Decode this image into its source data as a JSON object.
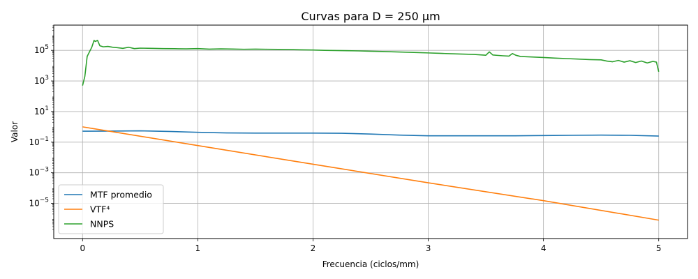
{
  "chart_data": {
    "type": "line",
    "title": "Curvas para D = 250 µm",
    "xlabel": "Frecuencia (ciclos/mm)",
    "ylabel": "Valor",
    "yscale": "log",
    "xlim": [
      -0.25,
      5.25
    ],
    "ylim_log10": [
      -7.3,
      6.65
    ],
    "grid": true,
    "legend_position": "lower-left",
    "x_ticks": [
      {
        "value": 0,
        "label": "0"
      },
      {
        "value": 1,
        "label": "1"
      },
      {
        "value": 2,
        "label": "2"
      },
      {
        "value": 3,
        "label": "3"
      },
      {
        "value": 4,
        "label": "4"
      },
      {
        "value": 5,
        "label": "5"
      }
    ],
    "y_ticks": [
      {
        "value": -5,
        "base": "10",
        "exp": "−5"
      },
      {
        "value": -3,
        "base": "10",
        "exp": "−3"
      },
      {
        "value": -1,
        "base": "10",
        "exp": "−1"
      },
      {
        "value": 1,
        "base": "10",
        "exp": "1"
      },
      {
        "value": 3,
        "base": "10",
        "exp": "3"
      },
      {
        "value": 5,
        "base": "10",
        "exp": "5"
      }
    ],
    "series": [
      {
        "name": "MTF promedio",
        "color": "#1f77b4",
        "x": [
          0.0,
          0.25,
          0.5,
          0.75,
          1.0,
          1.25,
          1.5,
          1.75,
          2.0,
          2.25,
          2.5,
          2.75,
          3.0,
          3.25,
          3.5,
          3.75,
          4.0,
          4.25,
          4.5,
          4.75,
          5.0
        ],
        "y": [
          0.52,
          0.53,
          0.55,
          0.5,
          0.44,
          0.4,
          0.39,
          0.39,
          0.39,
          0.38,
          0.34,
          0.29,
          0.26,
          0.26,
          0.26,
          0.26,
          0.27,
          0.28,
          0.29,
          0.28,
          0.25
        ]
      },
      {
        "name": "VTF⁴",
        "color": "#ff7f0e",
        "x": [
          0.0,
          1.0,
          2.0,
          3.0,
          4.0,
          5.0
        ],
        "y": [
          1.0,
          0.06,
          0.0036,
          0.00022,
          1.5e-05,
          8e-07
        ]
      },
      {
        "name": "NNPS",
        "color": "#2ca02c",
        "x": [
          0.0,
          0.02,
          0.04,
          0.06,
          0.08,
          0.1,
          0.11,
          0.13,
          0.15,
          0.18,
          0.22,
          0.26,
          0.3,
          0.35,
          0.4,
          0.45,
          0.5,
          0.6,
          0.7,
          0.8,
          0.9,
          1.0,
          1.1,
          1.2,
          1.3,
          1.4,
          1.5,
          1.6,
          1.7,
          1.8,
          1.9,
          2.0,
          2.1,
          2.2,
          2.3,
          2.4,
          2.5,
          2.6,
          2.7,
          2.8,
          2.9,
          3.0,
          3.1,
          3.2,
          3.3,
          3.4,
          3.5,
          3.53,
          3.56,
          3.6,
          3.65,
          3.7,
          3.73,
          3.76,
          3.8,
          3.9,
          4.0,
          4.1,
          4.2,
          4.3,
          4.4,
          4.5,
          4.55,
          4.6,
          4.65,
          4.7,
          4.75,
          4.8,
          4.85,
          4.9,
          4.95,
          4.98,
          5.0
        ],
        "y": [
          500,
          2000,
          40000,
          80000,
          160000,
          450000,
          380000,
          450000,
          200000,
          170000,
          180000,
          160000,
          150000,
          135000,
          160000,
          130000,
          140000,
          135000,
          130000,
          128000,
          125000,
          130000,
          120000,
          125000,
          122000,
          118000,
          120000,
          118000,
          115000,
          112000,
          108000,
          105000,
          100000,
          97000,
          95000,
          92000,
          88000,
          84000,
          80000,
          76000,
          72000,
          68000,
          64000,
          60000,
          57000,
          54000,
          48000,
          80000,
          50000,
          47000,
          44000,
          42000,
          62000,
          48000,
          40000,
          37000,
          34000,
          31000,
          29000,
          27000,
          25000,
          24000,
          20000,
          18000,
          22000,
          17000,
          21000,
          16000,
          20000,
          15000,
          19000,
          17000,
          4000
        ]
      }
    ]
  }
}
